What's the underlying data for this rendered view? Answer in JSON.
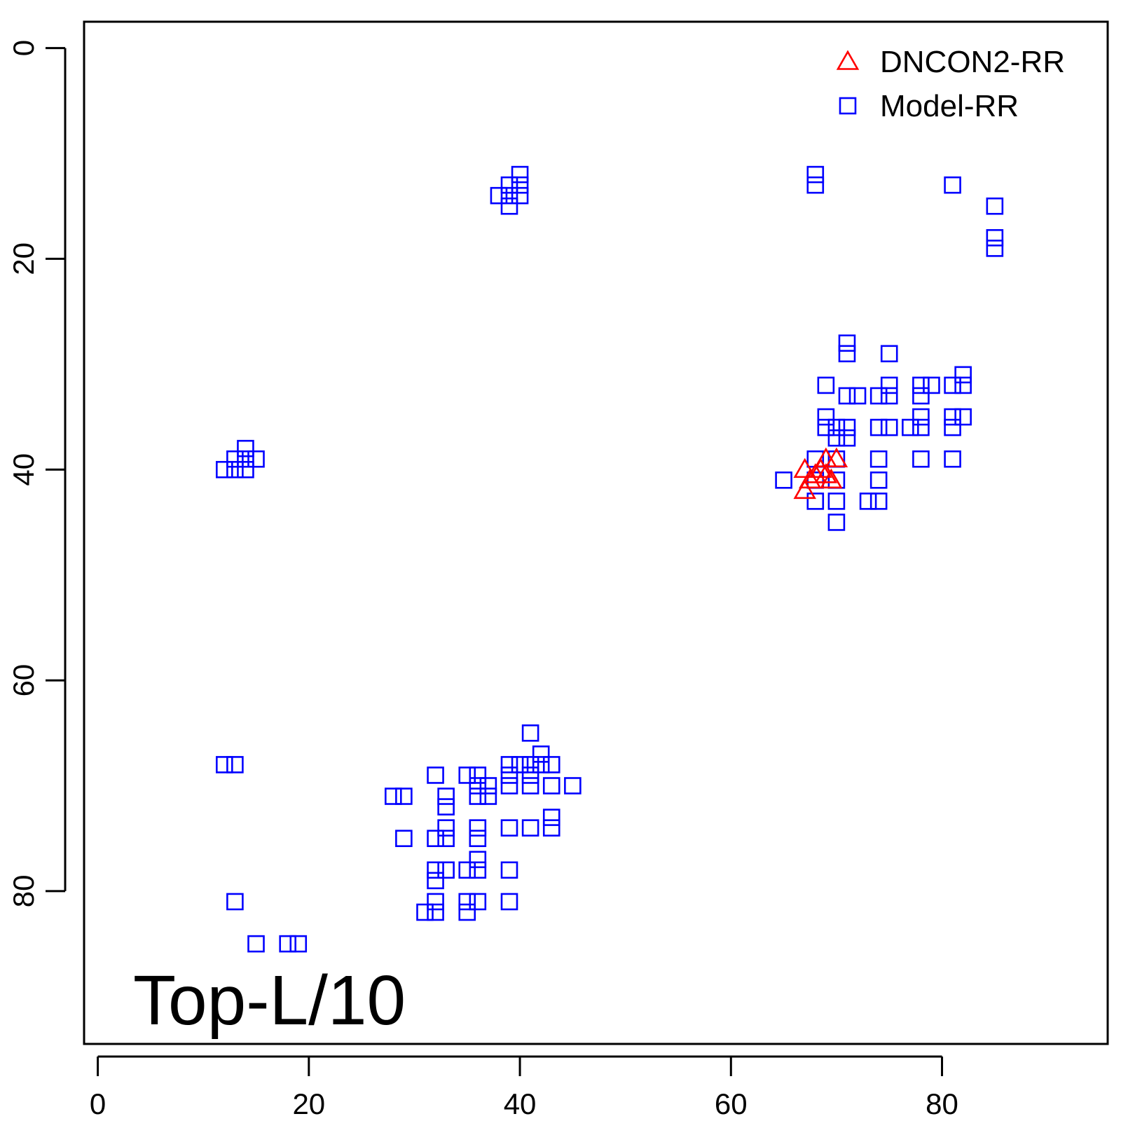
{
  "chart_data": {
    "type": "scatter",
    "xlim": [
      -1.3,
      95.7
    ],
    "ylim": [
      -2.5,
      94.5
    ],
    "y_reversed": true,
    "grid": false,
    "xticks": [
      0,
      20,
      40,
      60,
      80
    ],
    "yticks": [
      0,
      20,
      40,
      60,
      80
    ],
    "xtick_labels": [
      "0",
      "20",
      "40",
      "60",
      "80"
    ],
    "ytick_labels": [
      "0",
      "20",
      "40",
      "60",
      "80"
    ],
    "annotation": "Top-L/10",
    "legend": {
      "position": "top-right",
      "entries": [
        {
          "label": "DNCON2-RR",
          "marker": "triangle",
          "color": "#ff0000"
        },
        {
          "label": "Model-RR",
          "marker": "square",
          "color": "#0000ff"
        }
      ]
    },
    "series": [
      {
        "name": "Model-RR",
        "marker": "square",
        "color": "#0000ff",
        "points": [
          [
            38,
            14
          ],
          [
            39,
            13
          ],
          [
            39,
            14
          ],
          [
            39,
            15
          ],
          [
            40,
            12
          ],
          [
            40,
            13
          ],
          [
            40,
            14
          ],
          [
            68,
            12
          ],
          [
            68,
            13
          ],
          [
            81,
            13
          ],
          [
            85,
            15
          ],
          [
            85,
            18
          ],
          [
            85,
            19
          ],
          [
            12,
            40
          ],
          [
            13,
            39
          ],
          [
            13,
            40
          ],
          [
            14,
            38
          ],
          [
            14,
            39
          ],
          [
            14,
            40
          ],
          [
            15,
            39
          ],
          [
            71,
            28
          ],
          [
            71,
            29
          ],
          [
            75,
            29
          ],
          [
            69,
            32
          ],
          [
            75,
            32
          ],
          [
            78,
            32
          ],
          [
            79,
            32
          ],
          [
            81,
            32
          ],
          [
            82,
            31
          ],
          [
            82,
            32
          ],
          [
            71,
            33
          ],
          [
            72,
            33
          ],
          [
            74,
            33
          ],
          [
            75,
            33
          ],
          [
            78,
            33
          ],
          [
            69,
            35
          ],
          [
            78,
            35
          ],
          [
            81,
            35
          ],
          [
            82,
            35
          ],
          [
            69,
            36
          ],
          [
            70,
            36
          ],
          [
            71,
            36
          ],
          [
            74,
            36
          ],
          [
            75,
            36
          ],
          [
            77,
            36
          ],
          [
            78,
            36
          ],
          [
            81,
            36
          ],
          [
            70,
            37
          ],
          [
            71,
            37
          ],
          [
            68,
            39
          ],
          [
            70,
            39
          ],
          [
            74,
            39
          ],
          [
            78,
            39
          ],
          [
            81,
            39
          ],
          [
            65,
            41
          ],
          [
            68,
            41
          ],
          [
            70,
            41
          ],
          [
            74,
            41
          ],
          [
            68,
            43
          ],
          [
            70,
            43
          ],
          [
            73,
            43
          ],
          [
            74,
            43
          ],
          [
            70,
            45
          ],
          [
            41,
            65
          ],
          [
            42,
            67
          ],
          [
            39,
            68
          ],
          [
            40,
            68
          ],
          [
            41,
            68
          ],
          [
            42,
            68
          ],
          [
            43,
            68
          ],
          [
            12,
            68
          ],
          [
            13,
            68
          ],
          [
            32,
            69
          ],
          [
            35,
            69
          ],
          [
            36,
            69
          ],
          [
            39,
            69
          ],
          [
            41,
            69
          ],
          [
            36,
            70
          ],
          [
            37,
            70
          ],
          [
            39,
            70
          ],
          [
            41,
            70
          ],
          [
            43,
            70
          ],
          [
            45,
            70
          ],
          [
            28,
            71
          ],
          [
            29,
            71
          ],
          [
            33,
            71
          ],
          [
            36,
            71
          ],
          [
            37,
            71
          ],
          [
            33,
            72
          ],
          [
            43,
            73
          ],
          [
            33,
            74
          ],
          [
            36,
            74
          ],
          [
            39,
            74
          ],
          [
            41,
            74
          ],
          [
            43,
            74
          ],
          [
            29,
            75
          ],
          [
            32,
            75
          ],
          [
            33,
            75
          ],
          [
            36,
            75
          ],
          [
            36,
            77
          ],
          [
            32,
            78
          ],
          [
            33,
            78
          ],
          [
            35,
            78
          ],
          [
            36,
            78
          ],
          [
            39,
            78
          ],
          [
            32,
            79
          ],
          [
            13,
            81
          ],
          [
            32,
            81
          ],
          [
            35,
            81
          ],
          [
            36,
            81
          ],
          [
            39,
            81
          ],
          [
            31,
            82
          ],
          [
            32,
            82
          ],
          [
            35,
            82
          ],
          [
            15,
            85
          ],
          [
            18,
            85
          ],
          [
            19,
            85
          ]
        ]
      },
      {
        "name": "DNCON2-RR",
        "marker": "triangle",
        "color": "#ff0000",
        "points": [
          [
            67,
            40
          ],
          [
            67,
            42
          ],
          [
            67.5,
            41
          ],
          [
            68,
            40.5
          ],
          [
            68.5,
            40
          ],
          [
            69,
            39
          ],
          [
            69,
            40.5
          ],
          [
            69.5,
            41
          ],
          [
            70,
            39
          ]
        ]
      }
    ]
  }
}
